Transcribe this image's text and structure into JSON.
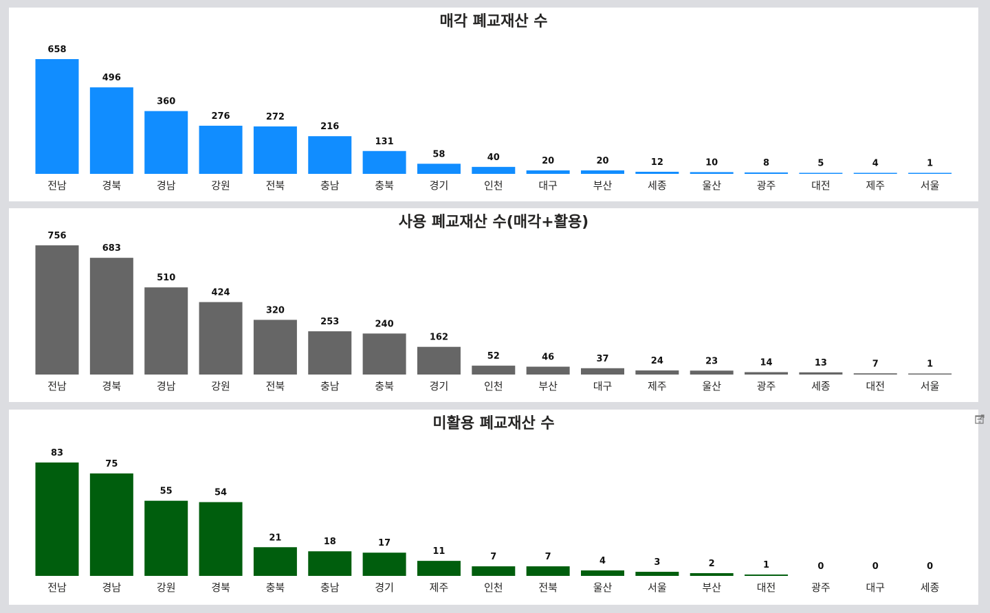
{
  "chart_data": [
    {
      "type": "bar",
      "title": "매각 폐교재산 수",
      "color": "#118dff",
      "categories": [
        "전남",
        "경북",
        "경남",
        "강원",
        "전북",
        "충남",
        "충북",
        "경기",
        "인천",
        "대구",
        "부산",
        "세종",
        "울산",
        "광주",
        "대전",
        "제주",
        "서울"
      ],
      "values": [
        658,
        496,
        360,
        276,
        272,
        216,
        131,
        58,
        40,
        20,
        20,
        12,
        10,
        8,
        5,
        4,
        1
      ],
      "ylim": [
        0,
        658
      ],
      "grid": false,
      "legend": "none"
    },
    {
      "type": "bar",
      "title": "사용 폐교재산 수(매각+활용)",
      "color": "#666666",
      "categories": [
        "전남",
        "경북",
        "경남",
        "강원",
        "전북",
        "충남",
        "충북",
        "경기",
        "인천",
        "부산",
        "대구",
        "제주",
        "울산",
        "광주",
        "세종",
        "대전",
        "서울"
      ],
      "values": [
        756,
        683,
        510,
        424,
        320,
        253,
        240,
        162,
        52,
        46,
        37,
        24,
        23,
        14,
        13,
        7,
        1
      ],
      "ylim": [
        0,
        756
      ],
      "grid": false,
      "legend": "none"
    },
    {
      "type": "bar",
      "title": "미활용 폐교재산 수",
      "color": "#005e0d",
      "categories": [
        "전남",
        "경남",
        "강원",
        "경북",
        "충북",
        "충남",
        "경기",
        "제주",
        "인천",
        "전북",
        "울산",
        "서울",
        "부산",
        "대전",
        "광주",
        "대구",
        "세종"
      ],
      "values": [
        83,
        75,
        55,
        54,
        21,
        18,
        17,
        11,
        7,
        7,
        4,
        3,
        2,
        1,
        0,
        0,
        0
      ],
      "ylim": [
        0,
        83
      ],
      "grid": false,
      "legend": "none"
    }
  ],
  "icons": {
    "filter": "filter-icon",
    "focus": "focus-mode-icon"
  }
}
